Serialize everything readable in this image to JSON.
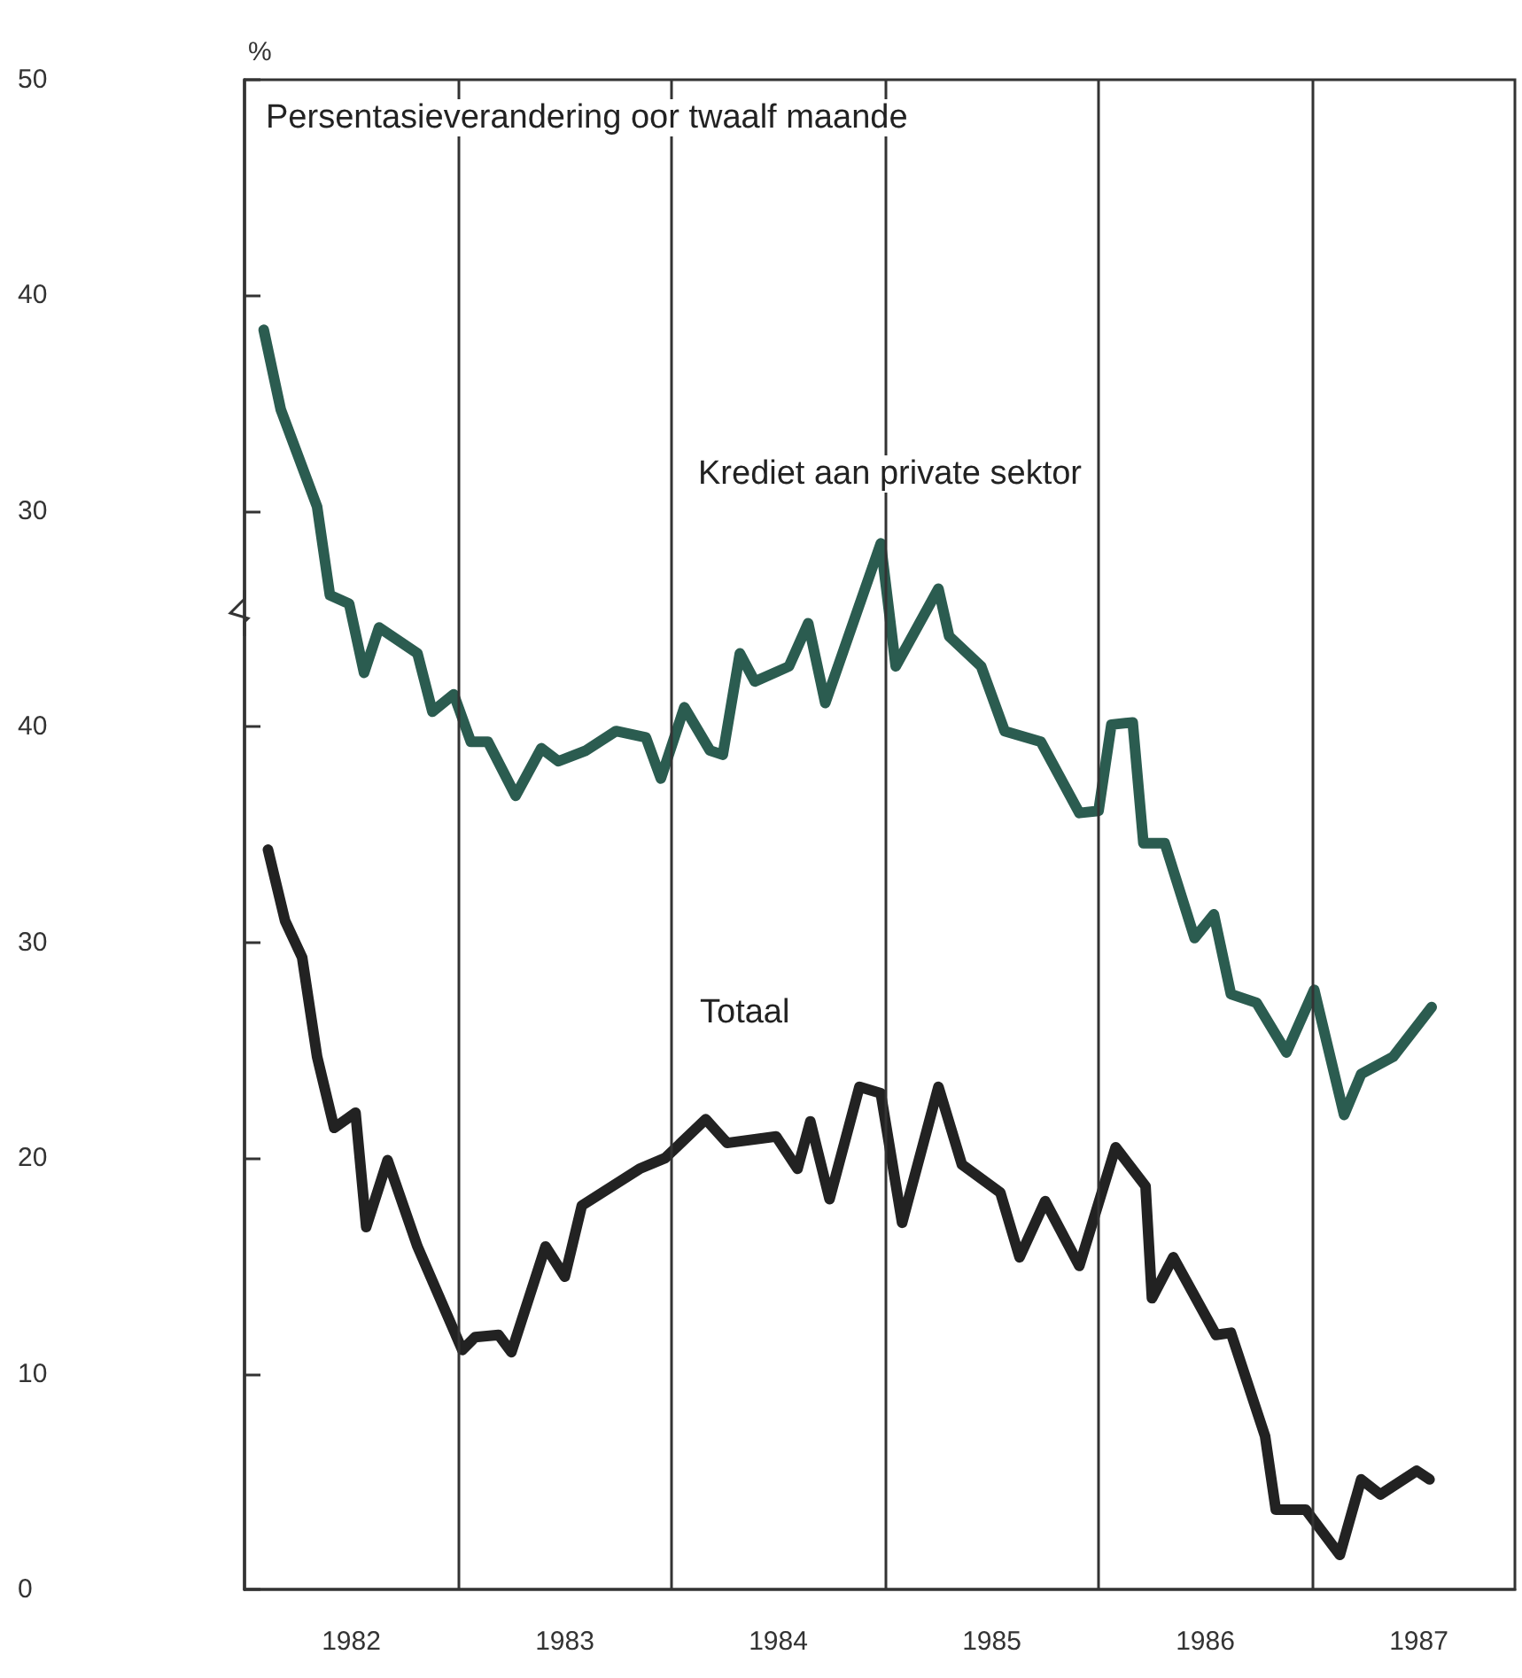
{
  "chart_data": {
    "type": "line",
    "title": "Persentasieverandering oor twaalf maande",
    "y2label": "%",
    "marker": "none",
    "line_style": "solid",
    "xlim": [
      1982,
      1987.95
    ],
    "xticks": [
      {
        "value": 1982.5,
        "label": "1982"
      },
      {
        "value": 1983.5,
        "label": "1983"
      },
      {
        "value": 1984.5,
        "label": "1984"
      },
      {
        "value": 1985.5,
        "label": "1985"
      },
      {
        "value": 1986.5,
        "label": "1986"
      },
      {
        "value": 1987.5,
        "label": "1987"
      }
    ],
    "ylim": [
      0,
      70
    ],
    "yticks": [
      0,
      10,
      20,
      30,
      40
    ],
    "y2lim": [
      -20,
      50
    ],
    "y2ticks": [
      30,
      40,
      50
    ],
    "ref_lines": [
      {
        "axis": "x",
        "value": 1983,
        "color": "#333333"
      },
      {
        "axis": "x",
        "value": 1984,
        "color": "#333333"
      },
      {
        "axis": "x",
        "value": 1985,
        "color": "#333333"
      },
      {
        "axis": "x",
        "value": 1986,
        "color": "#333333"
      },
      {
        "axis": "x",
        "value": 1987,
        "color": "#333333"
      }
    ],
    "series": [
      {
        "name": "Krediet aan private sektor",
        "color": "#2b5c50",
        "axis": "y2",
        "x": [
          1982.09,
          1982.17,
          1982.34,
          1982.4,
          1982.49,
          1982.56,
          1982.63,
          1982.81,
          1982.88,
          1982.98,
          1983.06,
          1983.14,
          1983.27,
          1983.39,
          1983.47,
          1983.6,
          1983.74,
          1983.88,
          1983.95,
          1984.06,
          1984.18,
          1984.24,
          1984.32,
          1984.39,
          1984.55,
          1984.64,
          1984.72,
          1984.98,
          1985.05,
          1985.25,
          1985.3,
          1985.45,
          1985.56,
          1985.73,
          1985.91,
          1986,
          1986.06,
          1986.16,
          1986.21,
          1986.31,
          1986.45,
          1986.54,
          1986.62,
          1986.74,
          1986.88,
          1987.01,
          1987.15,
          1987.23,
          1987.38,
          1987.56
        ],
        "values": [
          38.4,
          34.7,
          30.2,
          26.1,
          25.7,
          22.5,
          24.6,
          23.4,
          20.7,
          21.5,
          19.3,
          19.3,
          16.8,
          19,
          18.4,
          18.9,
          19.8,
          19.5,
          17.6,
          20.9,
          18.9,
          18.7,
          23.4,
          22.1,
          22.8,
          24.8,
          21.1,
          28.5,
          22.8,
          26.4,
          24.2,
          22.8,
          19.8,
          19.3,
          16,
          16.1,
          20.1,
          20.2,
          14.6,
          14.6,
          10.2,
          11.3,
          7.6,
          7.2,
          4.9,
          7.8,
          2,
          3.9,
          4.7,
          7
        ]
      },
      {
        "name": "Totaal",
        "color": "#222222",
        "axis": "y",
        "x": [
          1982.11,
          1982.19,
          1982.27,
          1982.34,
          1982.42,
          1982.52,
          1982.57,
          1982.67,
          1982.81,
          1983.02,
          1983.08,
          1983.19,
          1983.25,
          1983.41,
          1983.5,
          1983.58,
          1983.85,
          1983.97,
          1984.16,
          1984.26,
          1984.49,
          1984.59,
          1984.65,
          1984.74,
          1984.88,
          1984.98,
          1985.08,
          1985.25,
          1985.36,
          1985.54,
          1985.63,
          1985.75,
          1985.91,
          1986.08,
          1986.22,
          1986.25,
          1986.35,
          1986.55,
          1986.62,
          1986.78,
          1986.83,
          1986.97,
          1987.13,
          1987.23,
          1987.32,
          1987.49,
          1987.55
        ],
        "values": [
          34.3,
          31,
          29.3,
          24.7,
          21.4,
          22.1,
          16.8,
          19.9,
          15.9,
          11.1,
          11.7,
          11.8,
          11,
          15.9,
          14.5,
          17.8,
          19.5,
          20,
          21.8,
          20.7,
          21,
          19.5,
          21.7,
          18.1,
          23.3,
          23,
          17,
          23.3,
          19.7,
          18.4,
          15.4,
          18,
          15,
          20.5,
          18.7,
          13.5,
          15.4,
          11.8,
          11.9,
          7.1,
          3.7,
          3.7,
          1.6,
          5.1,
          4.4,
          5.5,
          5.1
        ]
      }
    ]
  }
}
